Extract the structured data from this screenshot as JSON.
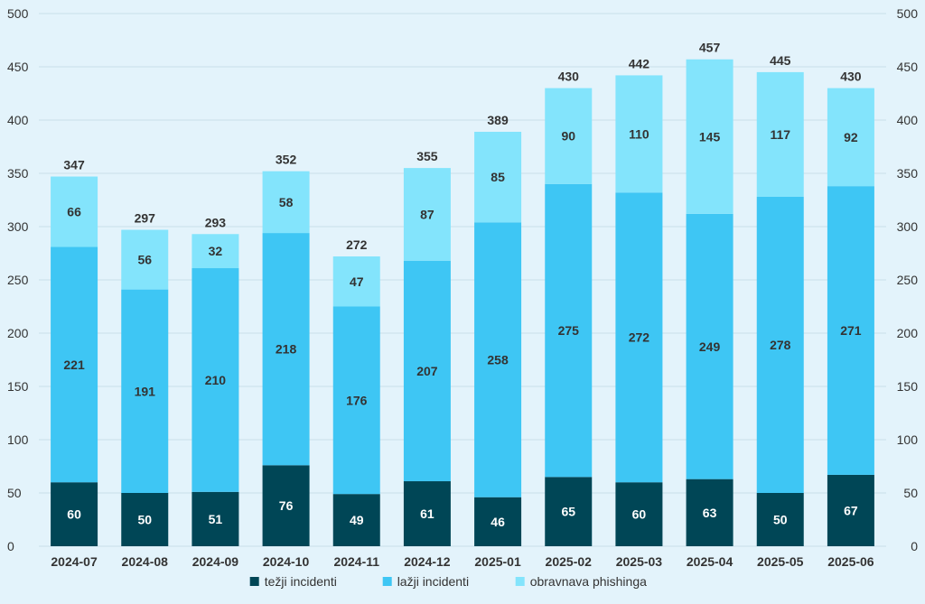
{
  "chart_data": {
    "type": "bar",
    "stacked": true,
    "categories": [
      "2024-07",
      "2024-08",
      "2024-09",
      "2024-10",
      "2024-11",
      "2024-12",
      "2025-01",
      "2025-02",
      "2025-03",
      "2025-04",
      "2025-05",
      "2025-06"
    ],
    "series": [
      {
        "name": "težji incidenti",
        "color": "#004656",
        "label_color": "#ffffff",
        "values": [
          60,
          50,
          51,
          76,
          49,
          61,
          46,
          65,
          60,
          63,
          50,
          67
        ]
      },
      {
        "name": "lažji incidenti",
        "color": "#3ec6f4",
        "label_color": "#333333",
        "values": [
          221,
          191,
          210,
          218,
          176,
          207,
          258,
          275,
          272,
          249,
          278,
          271
        ]
      },
      {
        "name": "obravnava phishinga",
        "color": "#83e4fc",
        "label_color": "#333333",
        "values": [
          66,
          56,
          32,
          58,
          47,
          87,
          85,
          90,
          110,
          145,
          117,
          92
        ]
      }
    ],
    "totals": [
      347,
      297,
      293,
      352,
      272,
      355,
      389,
      430,
      442,
      457,
      445,
      430
    ],
    "ylim": [
      0,
      500
    ],
    "yticks": [
      0,
      50,
      100,
      150,
      200,
      250,
      300,
      350,
      400,
      450,
      500
    ],
    "y_axis_both_sides": true,
    "grid": true,
    "legend_position": "bottom"
  }
}
